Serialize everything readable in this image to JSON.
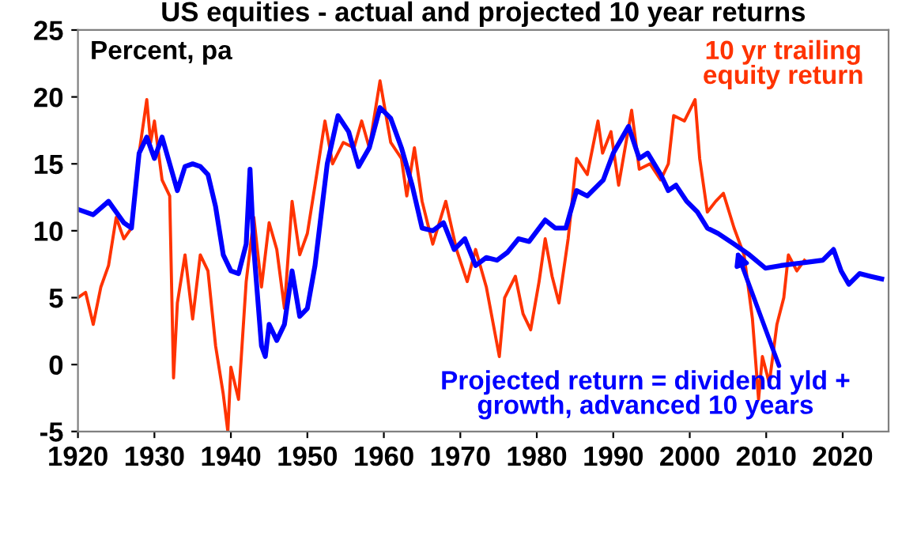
{
  "chart_data": {
    "type": "line",
    "title": "US equities - actual and projected 10 year returns",
    "annotations": [
      "Percent, pa"
    ],
    "xlim": [
      1920,
      2026
    ],
    "xticks": [
      1920,
      1930,
      1940,
      1950,
      1960,
      1970,
      1980,
      1990,
      2000,
      2010,
      2020
    ],
    "ylim": [
      -5,
      25
    ],
    "yticks": [
      -5,
      0,
      5,
      10,
      15,
      20,
      25
    ],
    "grid": false,
    "legend": false,
    "marker": "none",
    "line_style": "solid",
    "series": [
      {
        "name": "10 yr trailing\nequity return",
        "color": "#ff3300",
        "x": [
          1920,
          1921,
          1922,
          1923,
          1924,
          1925,
          1926,
          1927,
          1928,
          1929,
          1929.5,
          1930,
          1931,
          1932,
          1932.5,
          1933,
          1934,
          1935,
          1936,
          1937,
          1938,
          1939,
          1939.6,
          1940,
          1941,
          1942,
          1943,
          1944,
          1945,
          1946,
          1947,
          1948,
          1949,
          1950,
          1951,
          1952.3,
          1953.3,
          1954.7,
          1956.1,
          1957.1,
          1958.1,
          1959.5,
          1960.9,
          1962.3,
          1963,
          1964,
          1965,
          1966.4,
          1968.1,
          1969.5,
          1970.9,
          1972,
          1973.4,
          1975.1,
          1975.8,
          1977.2,
          1978.2,
          1979.2,
          1980.3,
          1981.1,
          1982,
          1982.9,
          1984.1,
          1985.2,
          1986.6,
          1988,
          1988.6,
          1989.7,
          1990.7,
          1992.4,
          1993.4,
          1994.8,
          1996.2,
          1997.2,
          1997.9,
          1999.3,
          2000.7,
          2001.3,
          2002.3,
          2003.4,
          2004.4,
          2005.8,
          2007.1,
          2008.2,
          2009,
          2009.5,
          2010.4,
          2011.4,
          2012.3,
          2012.9,
          2014,
          2015
        ],
        "values": [
          5,
          5.4,
          3,
          5.8,
          7.4,
          11,
          9.4,
          10.2,
          15.8,
          19.8,
          16.6,
          18.2,
          13.8,
          12.6,
          -1,
          4.6,
          8.2,
          3.4,
          8.2,
          7,
          1.4,
          -2.2,
          -5,
          -0.2,
          -2.6,
          6.2,
          11,
          5.8,
          10.6,
          8.6,
          4.2,
          12.2,
          8.2,
          9.8,
          13.4,
          18.2,
          15,
          16.6,
          16.2,
          18.2,
          16.2,
          21.2,
          16.6,
          15.4,
          12.6,
          16.2,
          12.2,
          9,
          12.2,
          8.6,
          6.2,
          8.6,
          5.8,
          0.6,
          5,
          6.6,
          3.8,
          2.6,
          6.2,
          9.4,
          6.6,
          4.6,
          9.4,
          15.4,
          14.2,
          18.2,
          15.8,
          17.4,
          13.4,
          19,
          14.6,
          15,
          13.8,
          15,
          18.6,
          18.2,
          19.8,
          15.4,
          11.4,
          12.2,
          12.8,
          10.2,
          8.2,
          3.4,
          -2.6,
          0.6,
          -1.4,
          3,
          5,
          8.2,
          7,
          7.8
        ]
      },
      {
        "name": "Projected return = dividend yld +\ngrowth, advanced 10 years",
        "color": "#0000ff",
        "x": [
          1920,
          1922,
          1924,
          1926,
          1927,
          1928,
          1929,
          1930,
          1931,
          1932,
          1933,
          1934,
          1935,
          1936,
          1937,
          1938,
          1939,
          1940,
          1941,
          1942,
          1942.5,
          1943,
          1944,
          1944.5,
          1945,
          1946,
          1947,
          1948,
          1949,
          1950,
          1951,
          1952.6,
          1954,
          1955.4,
          1956.7,
          1958.1,
          1959.5,
          1960.9,
          1962.3,
          1963.7,
          1965,
          1966.4,
          1967.8,
          1969.2,
          1970.6,
          1972,
          1973.4,
          1974.8,
          1976.2,
          1977.6,
          1979,
          1981.1,
          1982.4,
          1983.8,
          1985.2,
          1986.6,
          1988.7,
          1990,
          1992,
          1993.4,
          1994.5,
          1996.2,
          1997.2,
          1998.2,
          1999.6,
          2001,
          2002.3,
          2003.7,
          2005.8,
          2007.8,
          2009.9,
          2011.9,
          2014.7,
          2017.4,
          2018.8,
          2019.8,
          2020.8,
          2022.2,
          2023.6,
          2025.1
        ],
        "values": [
          11.6,
          11.2,
          12.2,
          10.6,
          10.2,
          15.8,
          17,
          15.4,
          17,
          15,
          13,
          14.8,
          15,
          14.8,
          14.2,
          11.8,
          8.2,
          7,
          6.8,
          9,
          14.6,
          8.6,
          1.4,
          0.6,
          3,
          1.8,
          3,
          7,
          3.6,
          4.2,
          7.4,
          15,
          18.6,
          17.4,
          14.8,
          16.2,
          19.2,
          18.4,
          16.2,
          13.4,
          10.2,
          10,
          10.6,
          8.6,
          9.4,
          7.4,
          8,
          7.8,
          8.4,
          9.4,
          9.2,
          10.8,
          10.2,
          10.2,
          13,
          12.6,
          13.8,
          15.8,
          17.8,
          15.4,
          15.8,
          14.2,
          13,
          13.4,
          12.2,
          11.4,
          10.2,
          9.8,
          9,
          8.2,
          7.2,
          7.4,
          7.6,
          7.8,
          8.6,
          7,
          6,
          6.8,
          6.6,
          6.4
        ]
      }
    ]
  }
}
